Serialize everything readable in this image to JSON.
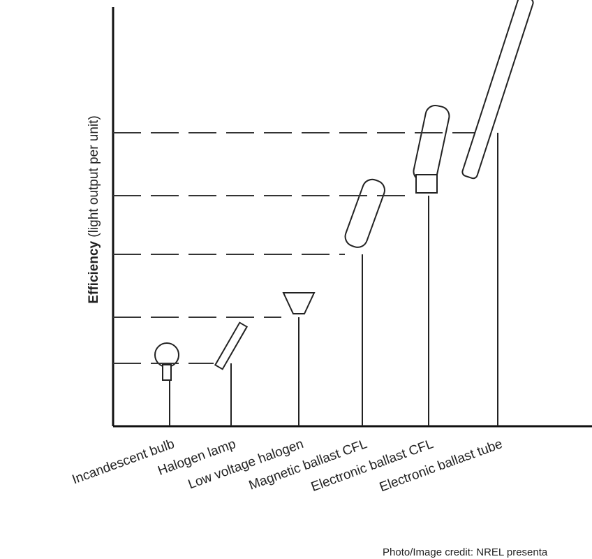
{
  "chart_data": {
    "type": "bar",
    "y_label_bold": "Efficiency",
    "y_label": "(light output per unit)",
    "categories": [
      "Incandescent bulb",
      "Halogen lamp",
      "Low voltage halogen",
      "Magnetic ballast CFL",
      "Electronic ballast CFL",
      "Electronic ballast tube"
    ],
    "values": [
      15,
      15,
      26,
      41,
      55,
      70
    ],
    "ylim": [
      0,
      100
    ],
    "color": "#222222",
    "credit": "Photo/Image credit: NREL presenta"
  }
}
